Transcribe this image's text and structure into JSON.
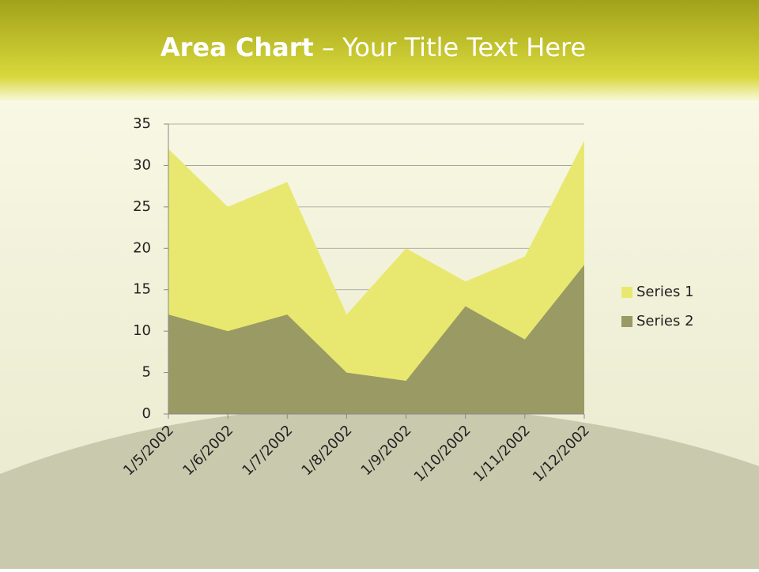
{
  "slide": {
    "title_bold": "Area Chart",
    "title_rest": " – Your Title Text Here"
  },
  "chart_data": {
    "type": "area",
    "categories": [
      "1/5/2002",
      "1/6/2002",
      "1/7/2002",
      "1/8/2002",
      "1/9/2002",
      "1/10/2002",
      "1/11/2002",
      "1/12/2002"
    ],
    "series": [
      {
        "name": "Series 1",
        "color": "#e8e870",
        "values": [
          32,
          25,
          28,
          12,
          20,
          16,
          19,
          33
        ]
      },
      {
        "name": "Series 2",
        "color": "#9a9a64",
        "values": [
          12,
          10,
          12,
          5,
          4,
          13,
          9,
          18
        ]
      }
    ],
    "ylim": [
      0,
      35
    ],
    "yticks": [
      0,
      5,
      10,
      15,
      20,
      25,
      30,
      35
    ],
    "grid": true,
    "legend": "right"
  }
}
